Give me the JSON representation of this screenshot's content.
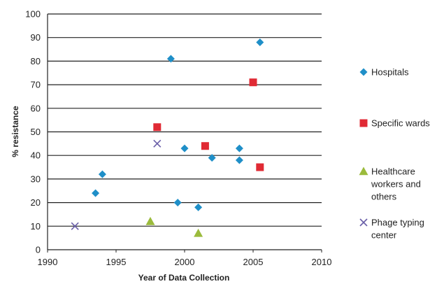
{
  "chart_data": {
    "type": "scatter",
    "title": "",
    "xlabel": "Year of Data Collection",
    "ylabel": "% resistance",
    "xlim": [
      1990,
      2010
    ],
    "ylim": [
      0,
      100
    ],
    "x_ticks": [
      1990,
      1995,
      2000,
      2005,
      2010
    ],
    "y_ticks": [
      0,
      10,
      20,
      30,
      40,
      50,
      60,
      70,
      80,
      90,
      100
    ],
    "grid": "horizontal",
    "legend_position": "right",
    "series": [
      {
        "name": "Hospitals",
        "label_lines": [
          "Hospitals"
        ],
        "marker": "diamond",
        "color": "#1f8fc8",
        "points": [
          [
            1993.5,
            24
          ],
          [
            1994,
            32
          ],
          [
            1999,
            81
          ],
          [
            1999.5,
            20
          ],
          [
            2000,
            43
          ],
          [
            2001,
            18
          ],
          [
            2002,
            39
          ],
          [
            2004,
            43
          ],
          [
            2004,
            38
          ],
          [
            2005.5,
            88
          ]
        ]
      },
      {
        "name": "Specific wards",
        "label_lines": [
          "Specific wards"
        ],
        "marker": "square",
        "color": "#e02a34",
        "points": [
          [
            1998,
            52
          ],
          [
            2001.5,
            44
          ],
          [
            2005,
            71
          ],
          [
            2005.5,
            35
          ]
        ]
      },
      {
        "name": "Healthcare workers and others",
        "label_lines": [
          "Healthcare",
          "workers and",
          "others"
        ],
        "marker": "triangle",
        "color": "#9bbb3c",
        "points": [
          [
            1997.5,
            12
          ],
          [
            2001,
            7
          ]
        ]
      },
      {
        "name": "Phage typing center",
        "label_lines": [
          "Phage typing",
          "center"
        ],
        "marker": "x",
        "color": "#6a5fa8",
        "points": [
          [
            1992,
            10
          ],
          [
            1998,
            45
          ]
        ]
      }
    ]
  }
}
